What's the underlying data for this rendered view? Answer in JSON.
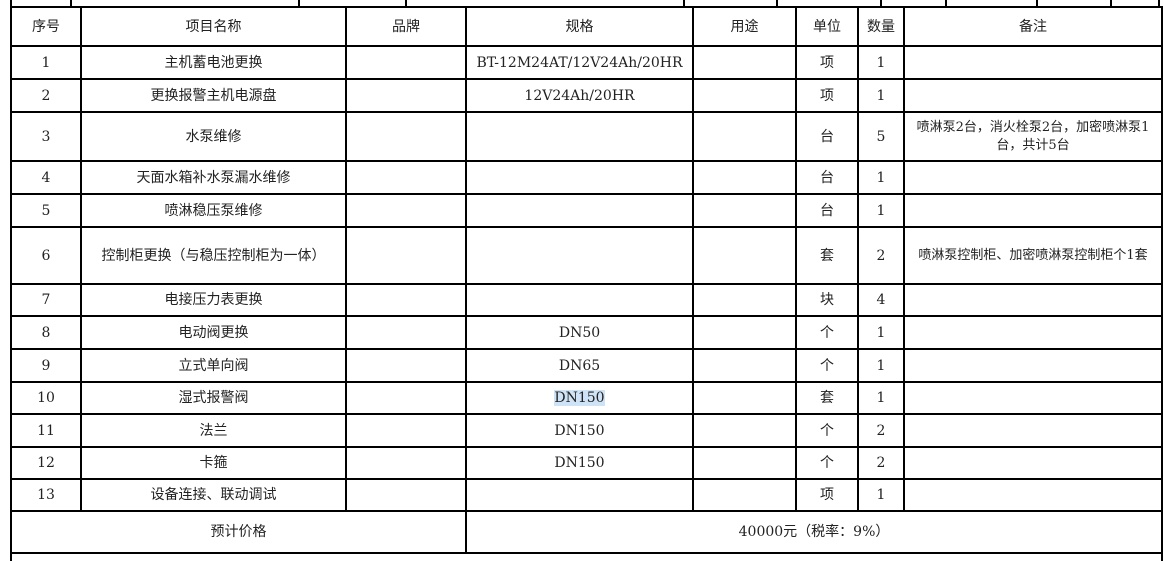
{
  "headers": [
    "序号",
    "项目名称",
    "品牌",
    "规格",
    "用途",
    "单位",
    "数量",
    "备注"
  ],
  "rows": [
    {
      "no": "1",
      "name": "主机蓄电池更换",
      "brand": "",
      "spec": "BT-12M24AT/12V24Ah/20HR",
      "use": "",
      "unit": "项",
      "qty": "1",
      "note": ""
    },
    {
      "no": "2",
      "name": "更换报警主机电源盘",
      "brand": "",
      "spec": "12V24Ah/20HR",
      "use": "",
      "unit": "项",
      "qty": "1",
      "note": ""
    },
    {
      "no": "3",
      "name": "水泵维修",
      "brand": "",
      "spec": "",
      "use": "",
      "unit": "台",
      "qty": "5",
      "note": "喷淋泵2台，消火栓泵2台，加密喷淋泵1台，共计5台"
    },
    {
      "no": "4",
      "name": "天面水箱补水泵漏水维修",
      "brand": "",
      "spec": "",
      "use": "",
      "unit": "台",
      "qty": "1",
      "note": ""
    },
    {
      "no": "5",
      "name": "喷淋稳压泵维修",
      "brand": "",
      "spec": "",
      "use": "",
      "unit": "台",
      "qty": "1",
      "note": ""
    },
    {
      "no": "6",
      "name": "控制柜更换（与稳压控制柜为一体）",
      "brand": "",
      "spec": "",
      "use": "",
      "unit": "套",
      "qty": "2",
      "note": "喷淋泵控制柜、加密喷淋泵控制柜个1套"
    },
    {
      "no": "7",
      "name": "电接压力表更换",
      "brand": "",
      "spec": "",
      "use": "",
      "unit": "块",
      "qty": "4",
      "note": ""
    },
    {
      "no": "8",
      "name": "电动阀更换",
      "brand": "",
      "spec": "DN50",
      "use": "",
      "unit": "个",
      "qty": "1",
      "note": ""
    },
    {
      "no": "9",
      "name": "立式单向阀",
      "brand": "",
      "spec": "DN65",
      "use": "",
      "unit": "个",
      "qty": "1",
      "note": ""
    },
    {
      "no": "10",
      "name": "湿式报警阀",
      "brand": "",
      "spec": "DN150",
      "use": "",
      "unit": "套",
      "qty": "1",
      "note": ""
    },
    {
      "no": "11",
      "name": "法兰",
      "brand": "",
      "spec": "DN150",
      "use": "",
      "unit": "个",
      "qty": "2",
      "note": ""
    },
    {
      "no": "12",
      "name": "卡箍",
      "brand": "",
      "spec": "DN150",
      "use": "",
      "unit": "个",
      "qty": "2",
      "note": ""
    },
    {
      "no": "13",
      "name": "设备连接、联动调试",
      "brand": "",
      "spec": "",
      "use": "",
      "unit": "项",
      "qty": "1",
      "note": ""
    }
  ],
  "total": {
    "label": "预计价格",
    "value": "40000元（税率：9%）"
  },
  "selection_color": "#cfe3f7"
}
